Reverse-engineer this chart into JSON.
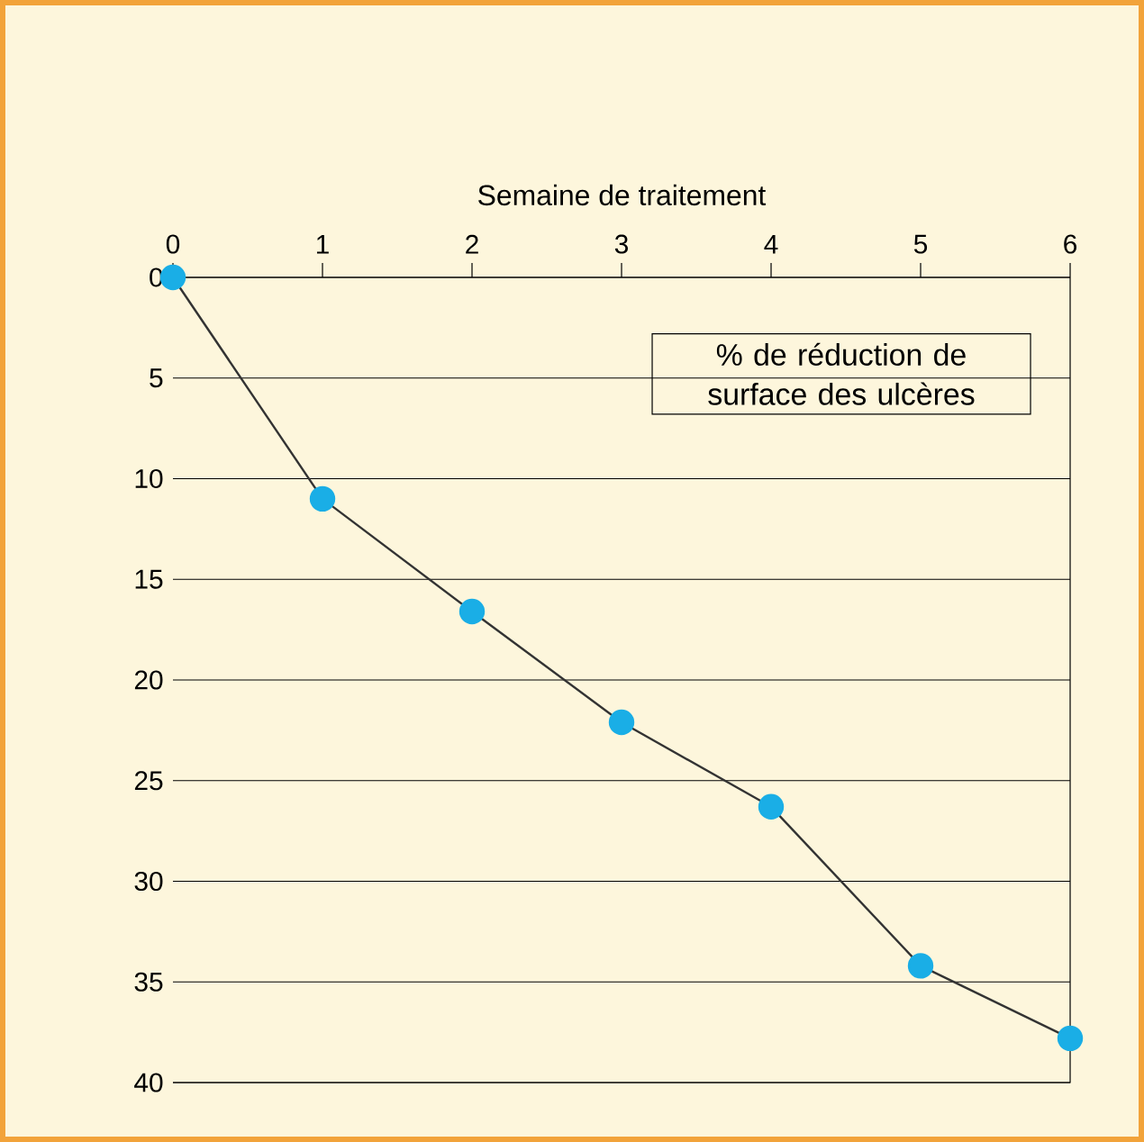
{
  "chart_data": {
    "type": "line",
    "xlabel": "Semaine de traitement",
    "x": [
      0,
      1,
      2,
      3,
      4,
      5,
      6
    ],
    "series": [
      {
        "color": "#1aaee6",
        "values": [
          0,
          11,
          16.6,
          22.1,
          26.3,
          34.2,
          37.8
        ]
      }
    ],
    "xlim": [
      0,
      6
    ],
    "xticks": [
      0,
      1,
      2,
      3,
      4,
      5,
      6
    ],
    "ylim": [
      40,
      0
    ],
    "yticks": [
      0,
      5,
      10,
      15,
      20,
      25,
      30,
      35,
      40
    ],
    "grid": "y",
    "marker": "circle",
    "line_style": "solid",
    "annotations": [
      "% de réduction de surface des ulcères"
    ]
  }
}
